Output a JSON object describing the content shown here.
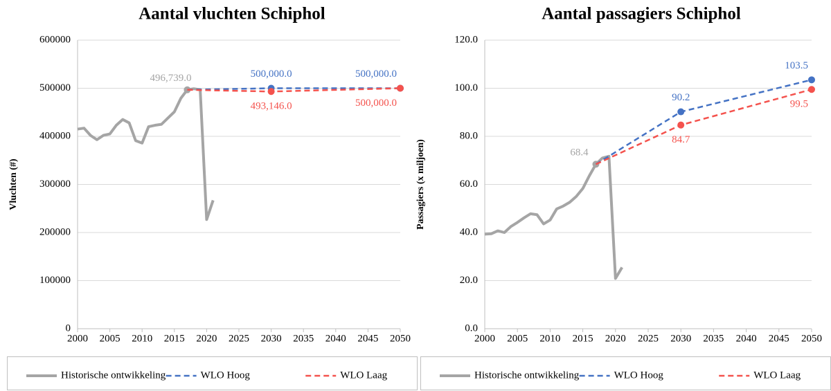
{
  "chart_data": [
    {
      "type": "line",
      "title": "Aantal vluchten Schiphol",
      "y_label": "Vluchten (#)",
      "xlim": [
        2000,
        2050
      ],
      "xticks": [
        2000,
        2005,
        2010,
        2015,
        2020,
        2025,
        2030,
        2035,
        2040,
        2045,
        2050
      ],
      "ylim": [
        0,
        600000
      ],
      "yticks": [
        0,
        100000,
        200000,
        300000,
        400000,
        500000,
        600000
      ],
      "grid": true,
      "series": [
        {
          "name": "Historische ontwikkeling",
          "color": "#a5a5a5",
          "dashed": false,
          "x": [
            2000,
            2001,
            2002,
            2003,
            2004,
            2005,
            2006,
            2007,
            2008,
            2009,
            2010,
            2011,
            2012,
            2013,
            2014,
            2015,
            2016,
            2017,
            2018,
            2019,
            2020,
            2021
          ],
          "values": [
            415000,
            417000,
            402000,
            393000,
            402000,
            405000,
            423000,
            435000,
            428000,
            391000,
            386000,
            420000,
            423000,
            425000,
            438000,
            451000,
            479000,
            496739,
            499000,
            497000,
            227000,
            267000
          ],
          "value_labels": [
            null,
            null,
            null,
            null,
            null,
            null,
            null,
            null,
            null,
            null,
            null,
            null,
            null,
            null,
            null,
            null,
            null,
            "496,739.0",
            null,
            null,
            null,
            null
          ]
        },
        {
          "name": "WLO Hoog",
          "color": "#4472c4",
          "dashed": true,
          "x": [
            2017,
            2030,
            2050
          ],
          "values": [
            496739,
            500000,
            500000
          ],
          "value_labels": [
            null,
            "500,000.0",
            "500,000.0"
          ]
        },
        {
          "name": "WLO Laag",
          "color": "#f4524d",
          "dashed": true,
          "x": [
            2017,
            2030,
            2050
          ],
          "values": [
            496739,
            493146,
            500000
          ],
          "value_labels": [
            null,
            "493,146.0",
            "500,000.0"
          ]
        }
      ]
    },
    {
      "type": "line",
      "title": "Aantal passagiers Schiphol",
      "y_label": "Passagiers (x miljoen)",
      "xlim": [
        2000,
        2050
      ],
      "xticks": [
        2000,
        2005,
        2010,
        2015,
        2020,
        2025,
        2030,
        2035,
        2040,
        2045,
        2050
      ],
      "ylim": [
        0,
        120
      ],
      "yticks": [
        {
          "value": 0,
          "label": "0.0"
        },
        {
          "value": 20,
          "label": "20.0"
        },
        {
          "value": 40,
          "label": "40.0"
        },
        {
          "value": 60,
          "label": "60.0"
        },
        {
          "value": 80,
          "label": "80.0"
        },
        {
          "value": 100,
          "label": "100.0"
        },
        {
          "value": 120,
          "label": "120.0"
        }
      ],
      "grid": true,
      "series": [
        {
          "name": "Historische ontwikkeling",
          "color": "#a5a5a5",
          "dashed": false,
          "x": [
            2000,
            2001,
            2002,
            2003,
            2004,
            2005,
            2006,
            2007,
            2008,
            2009,
            2010,
            2011,
            2012,
            2013,
            2014,
            2015,
            2016,
            2017,
            2018,
            2019,
            2020,
            2021
          ],
          "values": [
            39.3,
            39.5,
            40.7,
            40.0,
            42.5,
            44.2,
            46.1,
            47.8,
            47.4,
            43.6,
            45.2,
            49.8,
            51.0,
            52.6,
            55.0,
            58.3,
            63.6,
            68.4,
            71.0,
            71.7,
            20.9,
            25.5
          ],
          "value_labels": [
            null,
            null,
            null,
            null,
            null,
            null,
            null,
            null,
            null,
            null,
            null,
            null,
            null,
            null,
            null,
            null,
            null,
            "68.4",
            null,
            null,
            null,
            null
          ]
        },
        {
          "name": "WLO Hoog",
          "color": "#4472c4",
          "dashed": true,
          "x": [
            2017,
            2030,
            2050
          ],
          "values": [
            68.4,
            90.2,
            103.5
          ],
          "value_labels": [
            null,
            "90.2",
            "103.5"
          ]
        },
        {
          "name": "WLO Laag",
          "color": "#f4524d",
          "dashed": true,
          "x": [
            2017,
            2030,
            2050
          ],
          "values": [
            68.4,
            84.7,
            99.5
          ],
          "value_labels": [
            null,
            "84.7",
            "99.5"
          ]
        }
      ]
    }
  ]
}
